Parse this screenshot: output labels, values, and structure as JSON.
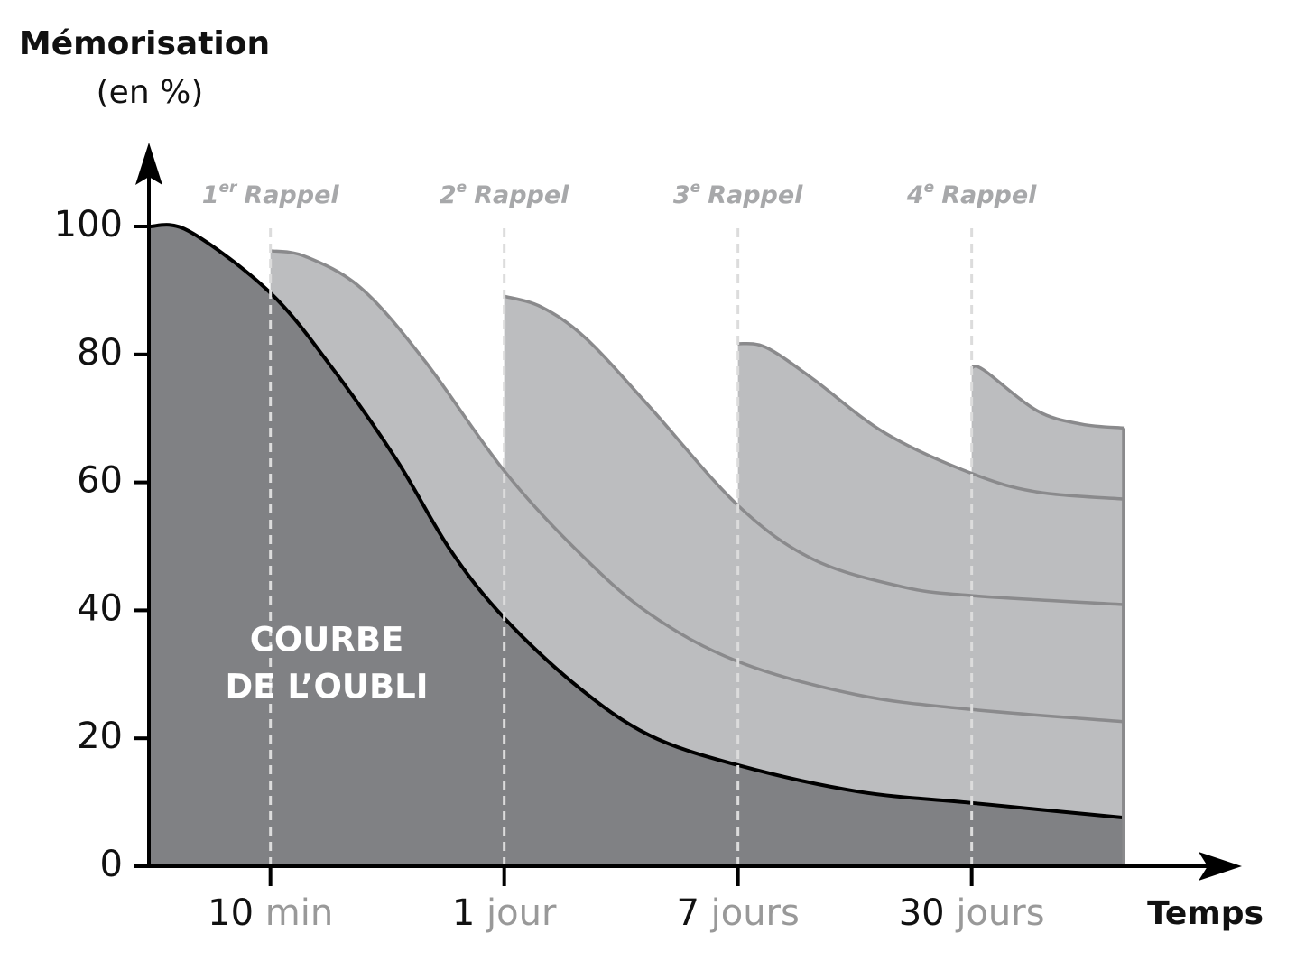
{
  "chart_data": {
    "type": "area",
    "title": "Mémorisation",
    "subtitle": "(en %)",
    "xlabel": "Temps",
    "xlim": [
      0.48,
      4.65
    ],
    "ylim": [
      0,
      100
    ],
    "yticks": [
      0,
      20,
      40,
      60,
      80,
      100
    ],
    "xticks": [
      {
        "value": 1,
        "label": "10 min"
      },
      {
        "value": 2,
        "label": "1 jour"
      },
      {
        "value": 3,
        "label": "7 jours"
      },
      {
        "value": 4,
        "label": "30 jours"
      }
    ],
    "series": [
      {
        "label_lines": [
          "COURBE",
          "DE L’OUBLI"
        ],
        "color": "#808184",
        "line_color": "#000000",
        "x": [
          0.48,
          0.65,
          1,
          1.27,
          1.54,
          1.77,
          2,
          2.31,
          2.62,
          3,
          3.51,
          4,
          4.65
        ],
        "values": [
          100,
          99.3,
          89.6,
          77.6,
          63.5,
          49.4,
          38.8,
          28.2,
          20.5,
          15.8,
          11.7,
          9.9,
          7.6
        ]
      },
      {
        "rank": "1",
        "rank_sup": "er",
        "name": "Rappel",
        "color": "#bcbdbf",
        "line_color": "#8a8a8c",
        "x": [
          1,
          1.15,
          1.39,
          1.66,
          2,
          2.31,
          2.62,
          3,
          3.51,
          4,
          4.65
        ],
        "values": [
          96.2,
          95.3,
          90.3,
          79,
          61.8,
          49.4,
          39.5,
          32,
          26.8,
          24.5,
          22.6
        ]
      },
      {
        "rank": "2",
        "rank_sup": "e",
        "name": "Rappel",
        "color": "#bcbdbf",
        "line_color": "#8a8a8c",
        "x": [
          2,
          2.16,
          2.35,
          2.62,
          3,
          3.32,
          3.7,
          4,
          4.65
        ],
        "values": [
          89.1,
          87.4,
          82.5,
          71.9,
          56.4,
          48,
          43.7,
          42.3,
          40.9
        ]
      },
      {
        "rank": "3",
        "rank_sup": "e",
        "name": "Rappel",
        "color": "#bcbdbf",
        "line_color": "#8a8a8c",
        "x": [
          3,
          3.12,
          3.32,
          3.63,
          4,
          4.28,
          4.65
        ],
        "values": [
          81.7,
          81.1,
          76.2,
          67.7,
          61.4,
          58.5,
          57.4
        ]
      },
      {
        "rank": "4",
        "rank_sup": "e",
        "name": "Rappel",
        "color": "#bcbdbf",
        "line_color": "#8a8a8c",
        "x": [
          4,
          4.05,
          4.28,
          4.47,
          4.65
        ],
        "values": [
          77.9,
          77.6,
          71.2,
          69.1,
          68.5
        ]
      }
    ]
  }
}
